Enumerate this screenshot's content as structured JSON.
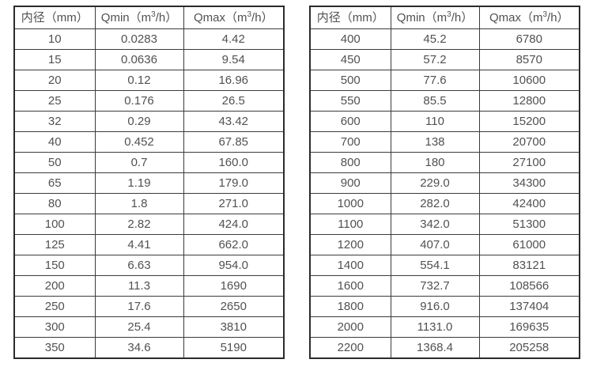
{
  "page": {
    "background": "#ffffff",
    "text_color": "#515155",
    "border_color": "#2b2b2b"
  },
  "tables": [
    {
      "name": "flow-spec-table-small-diameters",
      "headers": [
        {
          "label": "内径（mm）"
        },
        {
          "pre": "Qmin（m",
          "sup": "3",
          "post": "/h）"
        },
        {
          "pre": "Qmax（m",
          "sup": "3",
          "post": "/h）"
        }
      ],
      "rows": [
        [
          "10",
          "0.0283",
          "4.42"
        ],
        [
          "15",
          "0.0636",
          "9.54"
        ],
        [
          "20",
          "0.12",
          "16.96"
        ],
        [
          "25",
          "0.176",
          "26.5"
        ],
        [
          "32",
          "0.29",
          "43.42"
        ],
        [
          "40",
          "0.452",
          "67.85"
        ],
        [
          "50",
          "0.7",
          "160.0"
        ],
        [
          "65",
          "1.19",
          "179.0"
        ],
        [
          "80",
          "1.8",
          "271.0"
        ],
        [
          "100",
          "2.82",
          "424.0"
        ],
        [
          "125",
          "4.41",
          "662.0"
        ],
        [
          "150",
          "6.63",
          "954.0"
        ],
        [
          "200",
          "11.3",
          "1690"
        ],
        [
          "250",
          "17.6",
          "2650"
        ],
        [
          "300",
          "25.4",
          "3810"
        ],
        [
          "350",
          "34.6",
          "5190"
        ]
      ]
    },
    {
      "name": "flow-spec-table-large-diameters",
      "headers": [
        {
          "label": "内径（mm）"
        },
        {
          "pre": "Qmin（m",
          "sup": "3",
          "post": "/h）"
        },
        {
          "pre": "Qmax（m",
          "sup": "3",
          "post": "/h）"
        }
      ],
      "rows": [
        [
          "400",
          "45.2",
          "6780"
        ],
        [
          "450",
          "57.2",
          "8570"
        ],
        [
          "500",
          "77.6",
          "10600"
        ],
        [
          "550",
          "85.5",
          "12800"
        ],
        [
          "600",
          "110",
          "15200"
        ],
        [
          "700",
          "138",
          "20700"
        ],
        [
          "800",
          "180",
          "27100"
        ],
        [
          "900",
          "229.0",
          "34300"
        ],
        [
          "1000",
          "282.0",
          "42400"
        ],
        [
          "1100",
          "342.0",
          "51300"
        ],
        [
          "1200",
          "407.0",
          "61000"
        ],
        [
          "1400",
          "554.1",
          "83121"
        ],
        [
          "1600",
          "732.7",
          "108566"
        ],
        [
          "1800",
          "916.0",
          "137404"
        ],
        [
          "2000",
          "1131.0",
          "169635"
        ],
        [
          "2200",
          "1368.4",
          "205258"
        ]
      ]
    }
  ]
}
